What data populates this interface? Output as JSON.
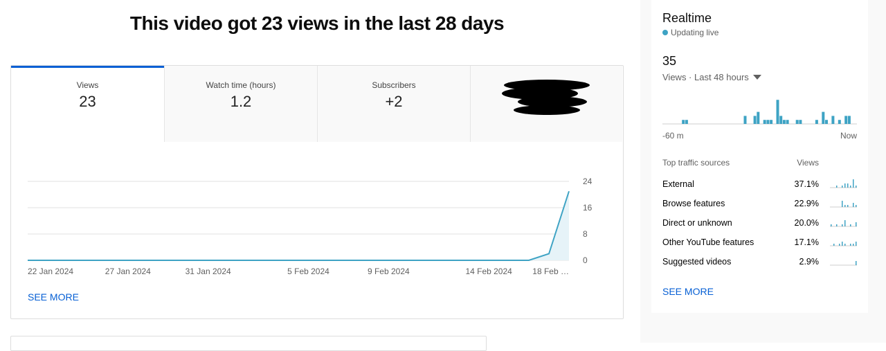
{
  "header": {
    "title": "This video got 23 views in the last 28 days"
  },
  "tabs": [
    {
      "label": "Views",
      "value": "23"
    },
    {
      "label": "Watch time (hours)",
      "value": "1.2"
    },
    {
      "label": "Subscribers",
      "value": "+2"
    }
  ],
  "views_chart": {
    "type": "line",
    "categories": [
      "22 Jan 2024",
      null,
      null,
      null,
      null,
      "27 Jan 2024",
      null,
      null,
      null,
      "31 Jan 2024",
      null,
      null,
      null,
      null,
      "5 Feb 2024",
      null,
      null,
      null,
      "9 Feb 2024",
      null,
      null,
      null,
      null,
      "14 Feb 2024",
      null,
      null,
      null,
      "18 Feb …"
    ],
    "values": [
      0,
      0,
      0,
      0,
      0,
      0,
      0,
      0,
      0,
      0,
      0,
      0,
      0,
      0,
      0,
      0,
      0,
      0,
      0,
      0,
      0,
      0,
      0,
      0,
      0,
      0,
      2,
      21
    ],
    "color": "#3ea3c4",
    "ylim": [
      0,
      24
    ],
    "yticks": [
      0,
      8,
      16,
      24
    ],
    "grid": true
  },
  "see_more": "SEE MORE",
  "realtime": {
    "title": "Realtime",
    "status": "Updating live",
    "total": "35",
    "period": "Views · Last 48 hours",
    "chart": {
      "type": "bar",
      "color": "#3ea3c4",
      "values": [
        0,
        0,
        0,
        0,
        0,
        0,
        1,
        1,
        0,
        0,
        0,
        0,
        0,
        0,
        0,
        0,
        0,
        0,
        0,
        0,
        0,
        0,
        0,
        0,
        0,
        2,
        0,
        0,
        2,
        3,
        0,
        1,
        1,
        1,
        0,
        6,
        2,
        1,
        1,
        0,
        0,
        1,
        1,
        0,
        0,
        0,
        0,
        1,
        0,
        3,
        1,
        0,
        2,
        0,
        1,
        0,
        2,
        2,
        0,
        0
      ]
    },
    "x_start": "-60 m",
    "x_end": "Now",
    "sources": {
      "header": "Top traffic sources",
      "column": "Views",
      "rows": [
        {
          "name": "External",
          "share": "37.1%",
          "trend": [
            0,
            0,
            1,
            0,
            1,
            2,
            2,
            1,
            4,
            1
          ]
        },
        {
          "name": "Browse features",
          "share": "22.9%",
          "trend": [
            0,
            0,
            0,
            0,
            3,
            1,
            1,
            0,
            2,
            1
          ]
        },
        {
          "name": "Direct or unknown",
          "share": "20.0%",
          "trend": [
            1,
            0,
            1,
            0,
            1,
            3,
            0,
            1,
            0,
            2
          ]
        },
        {
          "name": "Other YouTube features",
          "share": "17.1%",
          "trend": [
            0,
            1,
            0,
            1,
            2,
            1,
            0,
            1,
            1,
            2
          ]
        },
        {
          "name": "Suggested videos",
          "share": "2.9%",
          "trend": [
            0,
            0,
            0,
            0,
            0,
            0,
            0,
            0,
            0,
            2
          ]
        }
      ]
    },
    "see_more": "SEE MORE"
  }
}
